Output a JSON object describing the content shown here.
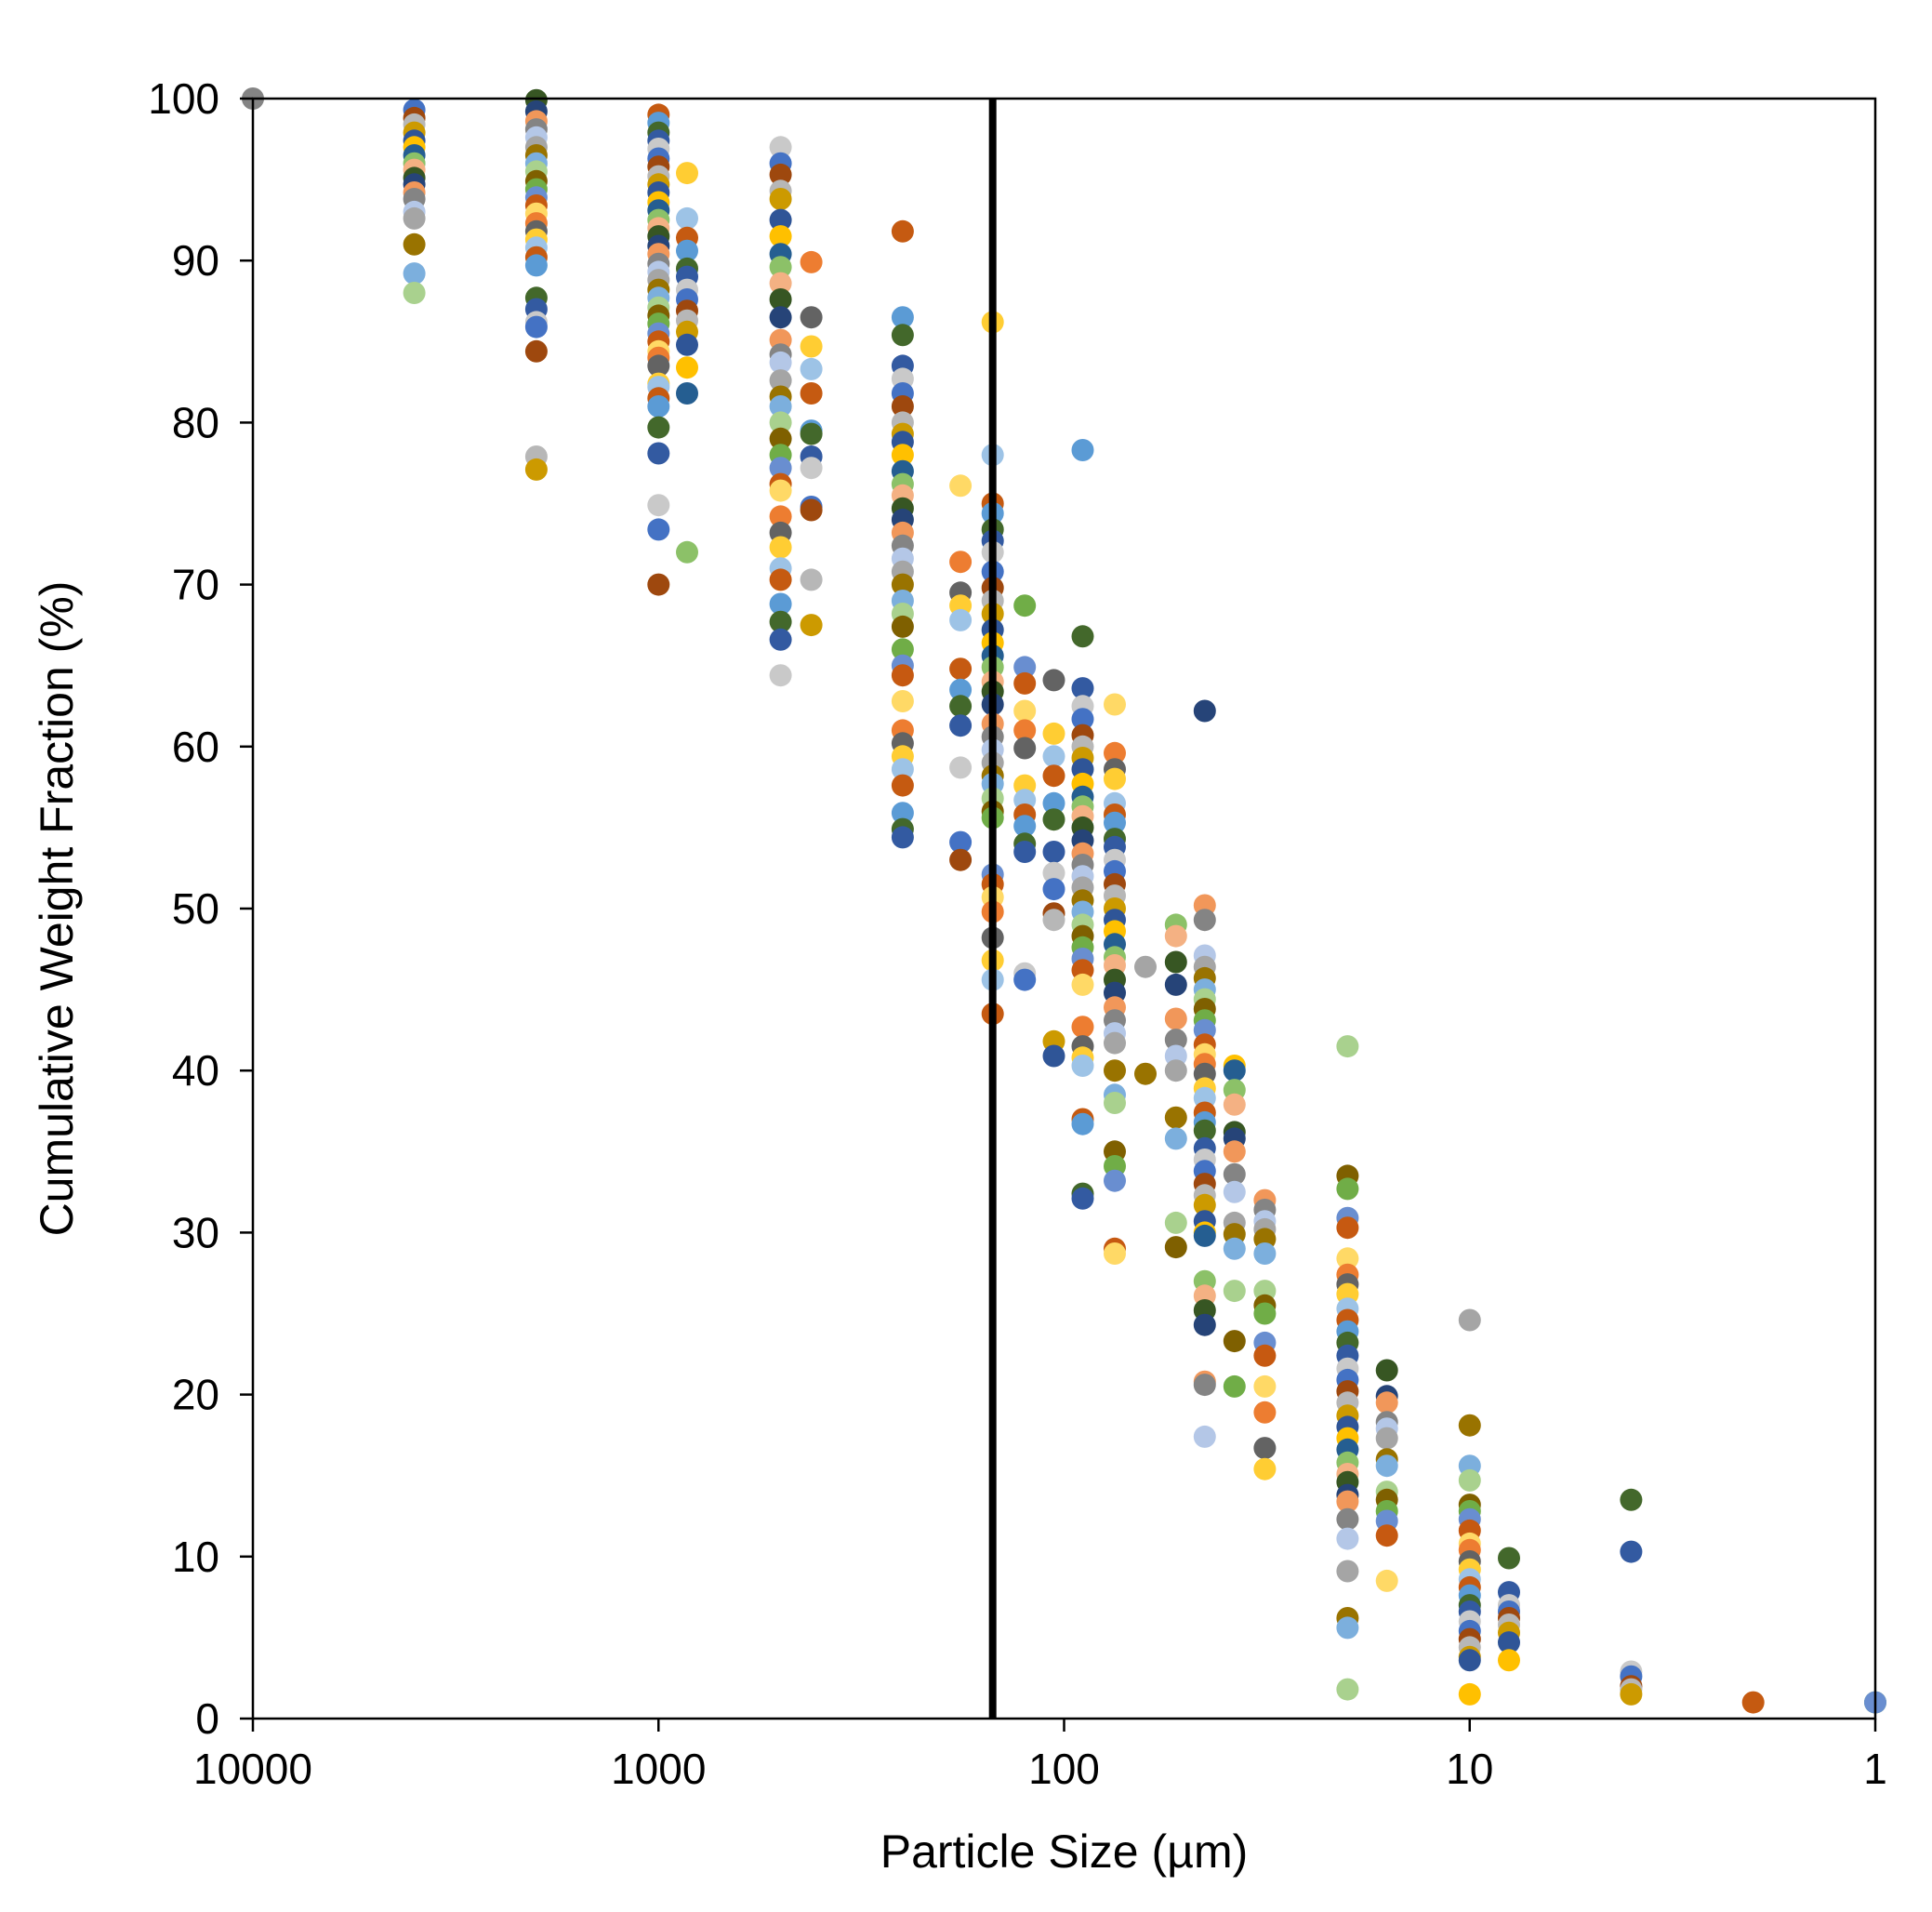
{
  "chart_data": {
    "type": "scatter",
    "title": "",
    "xlabel": "Particle Size (µm)",
    "ylabel": "Cumulative Weight Fraction (%)",
    "x_scale": "log",
    "x_reversed": true,
    "xlim": [
      10000,
      1
    ],
    "ylim": [
      0,
      100
    ],
    "x_ticks": [
      10000,
      1000,
      100,
      10,
      1
    ],
    "x_tick_labels": [
      "10000",
      "1000",
      "100",
      "10",
      "1"
    ],
    "y_ticks": [
      0,
      10,
      20,
      30,
      40,
      50,
      60,
      70,
      80,
      90,
      100
    ],
    "y_tick_labels": [
      "0",
      "10",
      "20",
      "30",
      "40",
      "50",
      "60",
      "70",
      "80",
      "90",
      "100"
    ],
    "legend": "none",
    "grid": false,
    "reference_line": {
      "x": 150,
      "color": "#000000"
    },
    "colors": [
      "#4472C4",
      "#ED7D31",
      "#A5A5A5",
      "#FFC000",
      "#5B9BD5",
      "#70AD47",
      "#264478",
      "#9E480E",
      "#636363",
      "#997300",
      "#255E91",
      "#43682B",
      "#698ED0",
      "#F1975A",
      "#B7B7B7",
      "#FFCD33",
      "#7CAFDD",
      "#8CC168",
      "#335AA1",
      "#C65911",
      "#848484",
      "#CC9A00",
      "#9DC3E6",
      "#A9D18E",
      "#F4B183",
      "#C9C9C9",
      "#FFD966",
      "#B4C7E7",
      "#2F5597",
      "#C55A11",
      "#7F6000",
      "#375623"
    ],
    "series": [
      {
        "x": 4000,
        "values": [
          99.3,
          98.8,
          98.4,
          97.9,
          97.4,
          97.0,
          96.5,
          96.0,
          95.6,
          95.1,
          94.7,
          94.2,
          93.8,
          93.0,
          92.6,
          91.0,
          89.2,
          88.0
        ]
      },
      {
        "x": 2000,
        "values": [
          99.9,
          99.2,
          98.6,
          98.1,
          97.6,
          97.0,
          96.5,
          96.0,
          95.5,
          94.9,
          94.4,
          93.9,
          93.4,
          92.9,
          92.3,
          91.8,
          91.3,
          90.8,
          90.2,
          89.7,
          87.7,
          87.0,
          86.2,
          85.9,
          84.4,
          77.9,
          77.1
        ]
      },
      {
        "x": 1000,
        "values": [
          99.0,
          98.5,
          97.9,
          97.4,
          96.9,
          96.3,
          95.8,
          95.2,
          94.7,
          94.2,
          93.6,
          93.1,
          92.5,
          92.0,
          91.5,
          90.9,
          90.4,
          89.8,
          89.3,
          88.8,
          88.2,
          87.7,
          87.1,
          86.6,
          86.1,
          85.5,
          85.0,
          84.4,
          84.0,
          83.5,
          82.4,
          82.2,
          81.5,
          81.0,
          79.7,
          78.1,
          74.9,
          73.4,
          70.0
        ]
      },
      {
        "x": 850,
        "values": [
          95.4,
          92.6,
          91.4,
          90.6,
          89.5,
          89.0,
          88.2,
          87.6,
          86.9,
          86.3,
          85.6,
          84.8,
          83.4,
          81.8,
          72.0
        ]
      },
      {
        "x": 500,
        "values": [
          97.0,
          96.0,
          95.3,
          94.3,
          93.8,
          92.5,
          91.5,
          90.4,
          89.6,
          88.6,
          87.6,
          86.5,
          85.1,
          84.2,
          83.7,
          82.6,
          81.6,
          81.0,
          80.0,
          79.0,
          78.0,
          77.2,
          76.2,
          75.8,
          74.2,
          73.2,
          72.3,
          71.0,
          70.3,
          68.8,
          67.7,
          66.6,
          64.4
        ]
      },
      {
        "x": 420,
        "values": [
          89.9,
          86.5,
          84.7,
          83.3,
          81.8,
          79.5,
          79.3,
          77.9,
          77.2,
          74.8,
          74.6,
          70.3,
          67.5
        ]
      },
      {
        "x": 250,
        "values": [
          91.8,
          86.5,
          85.4,
          83.5,
          82.7,
          81.8,
          81.0,
          80.0,
          79.3,
          78.8,
          78.0,
          77.0,
          76.2,
          75.5,
          74.7,
          74.0,
          73.2,
          72.4,
          71.6,
          70.8,
          70.0,
          69.0,
          68.2,
          67.4,
          66.0,
          65.0,
          64.4,
          62.8,
          61.0,
          60.2,
          59.4,
          58.6,
          57.6,
          55.9,
          54.9,
          54.4
        ]
      },
      {
        "x": 180,
        "values": [
          76.1,
          71.4,
          69.5,
          68.7,
          67.8,
          64.8,
          63.5,
          62.5,
          61.3,
          58.7,
          54.1,
          53.0
        ]
      },
      {
        "x": 150,
        "values": [
          86.2,
          78.0,
          75.0,
          74.4,
          73.4,
          72.7,
          72.0,
          70.8,
          69.8,
          69.0,
          68.2,
          67.2,
          66.4,
          65.6,
          64.9,
          64.0,
          63.4,
          62.6,
          61.4,
          60.6,
          59.8,
          59.0,
          58.2,
          57.7,
          56.8,
          56.0,
          55.6,
          52.1,
          51.5,
          50.7,
          49.8,
          48.2,
          46.8,
          45.6,
          43.5
        ]
      },
      {
        "x": 125,
        "values": [
          68.7,
          64.9,
          63.9,
          62.2,
          61.0,
          59.9,
          57.6,
          56.7,
          55.8,
          55.1,
          54.0,
          53.5,
          46.0,
          45.6
        ]
      },
      {
        "x": 106,
        "values": [
          64.1,
          60.8,
          59.4,
          58.2,
          56.5,
          55.5,
          53.5,
          52.2,
          51.2,
          49.7,
          49.3,
          41.8,
          40.9
        ]
      },
      {
        "x": 90,
        "values": [
          78.3,
          66.8,
          63.6,
          62.5,
          61.7,
          60.7,
          60.0,
          59.3,
          58.6,
          57.7,
          56.9,
          56.3,
          55.7,
          55.0,
          54.2,
          53.4,
          52.7,
          52.0,
          51.3,
          50.5,
          49.8,
          49.0,
          48.3,
          47.6,
          46.9,
          46.2,
          45.3,
          42.7,
          41.5,
          40.8,
          40.3,
          37.0,
          36.7,
          32.4,
          32.1
        ]
      },
      {
        "x": 75,
        "values": [
          62.6,
          59.6,
          58.6,
          58.0,
          56.5,
          55.8,
          55.3,
          54.3,
          53.8,
          53.0,
          52.3,
          51.5,
          50.8,
          50.0,
          49.3,
          48.6,
          47.8,
          47.0,
          46.5,
          45.6,
          44.8,
          43.9,
          43.1,
          42.3,
          41.7,
          40.0,
          38.5,
          38.0,
          35.0,
          34.1,
          33.2,
          29.0,
          28.7
        ]
      },
      {
        "x": 63,
        "values": [
          46.4,
          39.8
        ]
      },
      {
        "x": 53,
        "values": [
          49.0,
          48.3,
          46.7,
          45.3,
          43.2,
          41.9,
          40.9,
          40.0,
          37.1,
          35.8,
          30.6,
          29.1
        ]
      },
      {
        "x": 45,
        "values": [
          62.2,
          50.2,
          49.3,
          47.1,
          46.4,
          45.7,
          45.0,
          44.4,
          43.8,
          43.1,
          42.5,
          41.6,
          41.0,
          40.4,
          39.8,
          38.9,
          38.3,
          37.4,
          36.8,
          36.3,
          35.2,
          34.5,
          33.8,
          33.0,
          32.3,
          31.7,
          30.7,
          30.0,
          29.8,
          27.0,
          26.1,
          25.2,
          24.3,
          20.8,
          20.6,
          17.4
        ]
      },
      {
        "x": 38,
        "values": [
          40.3,
          40.0,
          38.8,
          37.9,
          36.2,
          35.8,
          35.0,
          33.6,
          32.5,
          30.6,
          29.9,
          29.0,
          26.4,
          23.3,
          20.5
        ]
      },
      {
        "x": 32,
        "values": [
          32.0,
          31.4,
          30.7,
          30.2,
          29.6,
          28.7,
          26.4,
          25.5,
          25.0,
          23.2,
          22.4,
          20.5,
          18.9,
          16.7,
          15.4
        ]
      },
      {
        "x": 20,
        "values": [
          41.5,
          33.5,
          32.7,
          30.9,
          30.3,
          28.4,
          27.4,
          26.8,
          26.2,
          25.3,
          24.6,
          23.9,
          23.2,
          22.4,
          21.6,
          20.9,
          20.2,
          19.5,
          18.7,
          18.0,
          17.3,
          16.6,
          15.8,
          15.1,
          14.6,
          13.8,
          13.4,
          12.3,
          11.1,
          9.1,
          6.2,
          5.6,
          1.8
        ]
      },
      {
        "x": 16,
        "values": [
          21.5,
          19.9,
          19.5,
          18.3,
          17.9,
          17.3,
          16.0,
          15.6,
          14.0,
          13.5,
          12.8,
          12.2,
          11.3,
          8.5
        ]
      },
      {
        "x": 10,
        "values": [
          24.6,
          18.1,
          15.6,
          14.7,
          13.2,
          12.8,
          12.3,
          11.6,
          10.8,
          10.4,
          9.7,
          9.2,
          8.6,
          8.1,
          7.6,
          7.0,
          6.6,
          6.0,
          5.4,
          4.9,
          4.4,
          3.8,
          3.6,
          1.5
        ]
      },
      {
        "x": 8,
        "values": [
          9.9,
          7.8,
          7.0,
          6.6,
          6.2,
          5.8,
          5.3,
          4.7,
          3.6
        ]
      },
      {
        "x": 4,
        "values": [
          13.5,
          10.3,
          2.9,
          2.6,
          2.0,
          1.8,
          1.5
        ]
      },
      {
        "x": 2,
        "values": [
          1.0
        ]
      },
      {
        "x": 1,
        "values": [
          1.0,
          1.0
        ]
      },
      {
        "x": 10000,
        "values": [
          100.0
        ]
      }
    ]
  }
}
